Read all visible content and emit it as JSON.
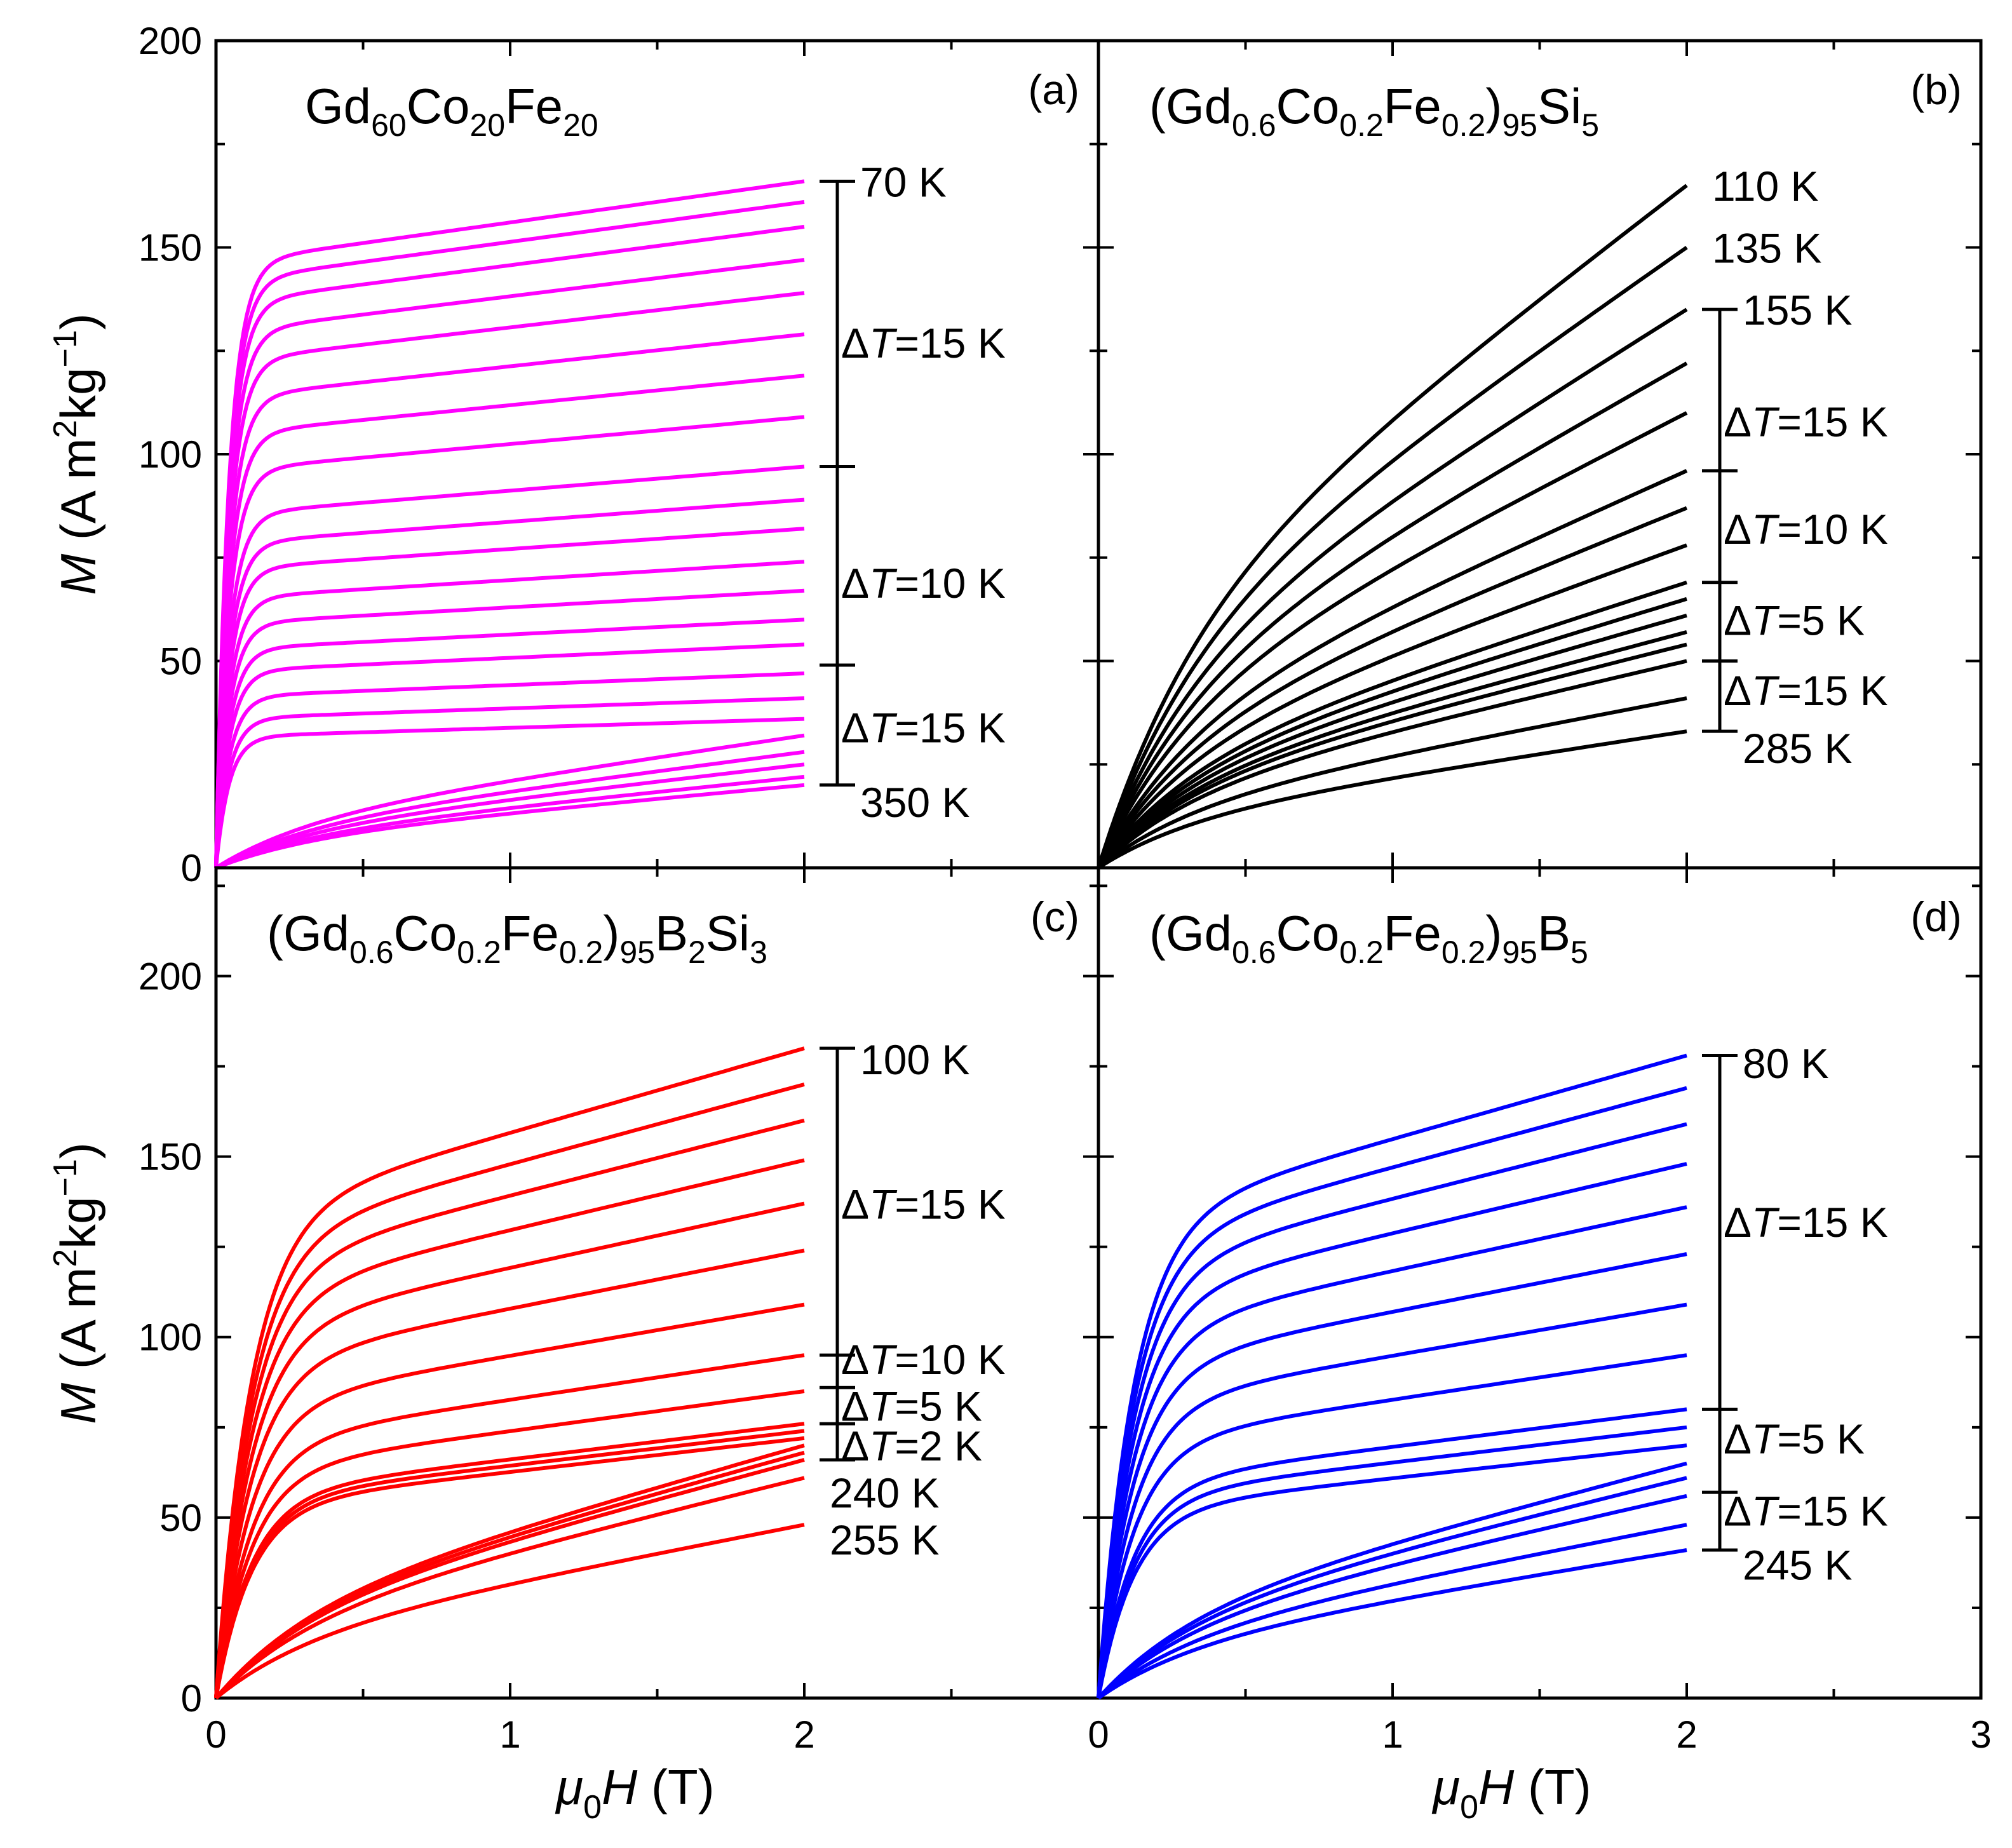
{
  "chart_data": [
    {
      "id": "a",
      "type": "line",
      "panel_label": "(a)",
      "formula": [
        [
          "Gd",
          "n"
        ],
        [
          "60",
          "sub"
        ],
        [
          "Co",
          "n"
        ],
        [
          "20",
          "sub"
        ],
        [
          "Fe",
          "n"
        ],
        [
          "20",
          "sub"
        ]
      ],
      "color": "#ff00ff",
      "xlim": [
        0,
        3
      ],
      "ylim": [
        0,
        200
      ],
      "x_ticks": [],
      "y_ticks": [
        "0",
        "50",
        "100",
        "150",
        "200"
      ],
      "x_max": 2,
      "mode": "fast",
      "M_end": [
        166,
        161,
        155,
        147,
        139,
        129,
        119,
        109,
        97,
        89,
        82,
        74,
        67,
        60,
        54,
        47,
        41,
        36,
        32,
        28,
        25,
        22,
        20
      ],
      "temperature_scale": {
        "ticks": [
          166,
          97,
          49,
          20
        ],
        "labels": [
          {
            "text": "70 K",
            "y": 166
          },
          {
            "delta": "ΔT=15 K",
            "y": 127
          },
          {
            "delta": "ΔT=10 K",
            "y": 69
          },
          {
            "delta": "ΔT=15 K",
            "y": 34
          },
          {
            "text": "350 K",
            "y": 16
          }
        ]
      }
    },
    {
      "id": "b",
      "type": "line",
      "panel_label": "(b)",
      "formula": [
        [
          "(Gd",
          "n"
        ],
        [
          "0.6",
          "sub"
        ],
        [
          "Co",
          "n"
        ],
        [
          "0.2",
          "sub"
        ],
        [
          "Fe",
          "n"
        ],
        [
          "0.2",
          "sub"
        ],
        [
          ")",
          "n"
        ],
        [
          "95",
          "sub"
        ],
        [
          "Si",
          "n"
        ],
        [
          "5",
          "sub"
        ]
      ],
      "color": "#000000",
      "xlim": [
        0,
        3
      ],
      "ylim": [
        0,
        200
      ],
      "x_ticks": [],
      "y_ticks": [],
      "x_max": 2,
      "mode": "slow",
      "M_end": [
        165,
        150,
        135,
        122,
        110,
        96,
        87,
        78,
        69,
        65,
        61,
        57,
        54,
        50,
        41,
        33
      ],
      "temperature_scale": {
        "ticks": [
          135,
          96,
          69,
          50,
          33
        ],
        "labels": [
          {
            "text": "110 K",
            "y": 165,
            "no_tick": true
          },
          {
            "text": "135 K",
            "y": 150,
            "no_tick": true
          },
          {
            "text": "155 K",
            "y": 135
          },
          {
            "delta": "ΔT=15 K",
            "y": 108
          },
          {
            "delta": "ΔT=10 K",
            "y": 82
          },
          {
            "delta": "ΔT=5 K",
            "y": 60
          },
          {
            "delta": "ΔT=15 K",
            "y": 43
          },
          {
            "text": "285 K",
            "y": 29
          }
        ]
      }
    },
    {
      "id": "c",
      "type": "line",
      "panel_label": "(c)",
      "formula": [
        [
          "(Gd",
          "n"
        ],
        [
          "0.6",
          "sub"
        ],
        [
          "Co",
          "n"
        ],
        [
          "0.2",
          "sub"
        ],
        [
          "Fe",
          "n"
        ],
        [
          "0.2",
          "sub"
        ],
        [
          ")",
          "n"
        ],
        [
          "95",
          "sub"
        ],
        [
          "B",
          "n"
        ],
        [
          "2",
          "sub"
        ],
        [
          "Si",
          "n"
        ],
        [
          "3",
          "sub"
        ]
      ],
      "color": "#ff0000",
      "xlim": [
        0,
        3
      ],
      "ylim": [
        0,
        230
      ],
      "x_ticks": [
        "0",
        "1",
        "2"
      ],
      "y_ticks": [
        "0",
        "50",
        "100",
        "150",
        "200"
      ],
      "x_max": 2,
      "mode": "medium",
      "M_end": [
        180,
        170,
        160,
        149,
        137,
        124,
        109,
        95,
        85,
        76,
        74,
        72,
        70,
        68,
        66,
        61,
        48
      ],
      "temperature_scale": {
        "ticks": [
          180,
          95,
          86,
          76,
          66
        ],
        "labels": [
          {
            "text": "100 K",
            "y": 177
          },
          {
            "delta": "ΔT=15 K",
            "y": 137
          },
          {
            "delta": "ΔT=10 K",
            "y": 94
          },
          {
            "delta": "ΔT=5 K",
            "y": 81
          },
          {
            "delta": "ΔT=2 K",
            "y": 70
          },
          {
            "text": "240 K",
            "y": 57,
            "no_tick": true
          },
          {
            "text": "255 K",
            "y": 44,
            "no_tick": true
          }
        ]
      }
    },
    {
      "id": "d",
      "type": "line",
      "panel_label": "(d)",
      "formula": [
        [
          "(Gd",
          "n"
        ],
        [
          "0.6",
          "sub"
        ],
        [
          "Co",
          "n"
        ],
        [
          "0.2",
          "sub"
        ],
        [
          "Fe",
          "n"
        ],
        [
          "0.2",
          "sub"
        ],
        [
          ")",
          "n"
        ],
        [
          "95",
          "sub"
        ],
        [
          "B",
          "n"
        ],
        [
          "5",
          "sub"
        ]
      ],
      "color": "#0000ff",
      "xlim": [
        0,
        3
      ],
      "ylim": [
        0,
        230
      ],
      "x_ticks": [
        "0",
        "1",
        "2",
        "3"
      ],
      "y_ticks": [],
      "x_max": 2,
      "mode": "medium",
      "M_end": [
        178,
        169,
        159,
        148,
        136,
        123,
        109,
        95,
        80,
        75,
        70,
        65,
        61,
        56,
        48,
        41
      ],
      "temperature_scale": {
        "ticks": [
          178,
          80,
          57,
          41
        ],
        "labels": [
          {
            "text": "80 K",
            "y": 176
          },
          {
            "delta": "ΔT=15 K",
            "y": 132
          },
          {
            "delta": "ΔT=5 K",
            "y": 72
          },
          {
            "delta": "ΔT=15 K",
            "y": 52
          },
          {
            "text": "245 K",
            "y": 37
          }
        ]
      }
    }
  ],
  "axes": {
    "ylabel": {
      "symbol": "M",
      "unit_open": " (A m",
      "sup": "2",
      "unit_mid": "kg",
      "sup2": "−1",
      "unit_close": ")"
    },
    "xlabel": {
      "mu": "μ",
      "sub": "0",
      "symbol": "H",
      "unit": " (T)"
    }
  }
}
